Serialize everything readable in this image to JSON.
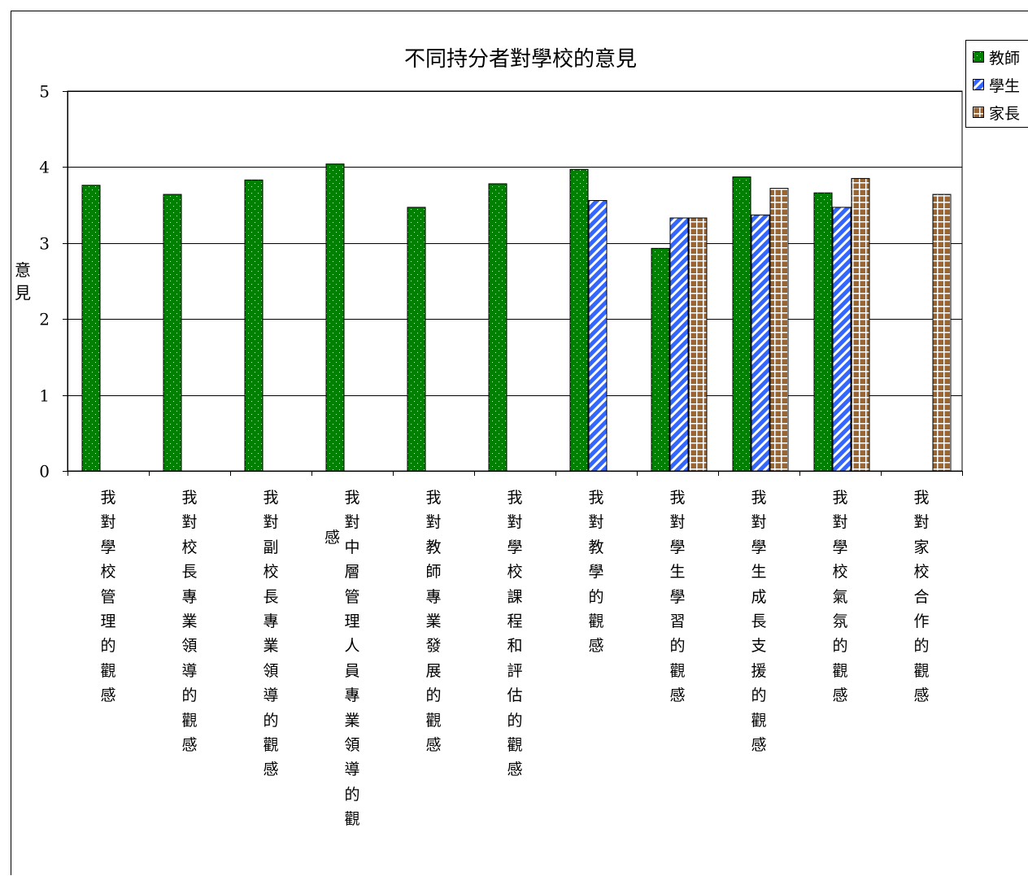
{
  "chart_data": {
    "type": "bar",
    "title": "不同持分者對學校的意見",
    "xlabel": "",
    "ylabel": "意見",
    "ylim": [
      0,
      5
    ],
    "yticks": [
      0,
      1,
      2,
      3,
      4,
      5
    ],
    "grid": "horizontal",
    "legend_position": "top-right",
    "categories": [
      "我對學校管理的觀感",
      "我對校長專業領導的觀感",
      "我對副校長專業領導的觀感",
      "我對中層管理人員專業領導的觀感",
      "我對教師專業發展的觀感",
      "我對學校課程和評估的觀感",
      "我對教學的觀感",
      "我對學生學習的觀感",
      "我對學生成長支援的觀感",
      "我對學校氣氛的觀感",
      "我對家校合作的觀感"
    ],
    "series": [
      {
        "name": "教師",
        "color": "#008000",
        "pattern": "dots",
        "values": [
          3.76,
          3.64,
          3.83,
          4.04,
          3.47,
          3.78,
          3.97,
          2.93,
          3.87,
          3.66,
          null
        ]
      },
      {
        "name": "學生",
        "color": "#3366ff",
        "pattern": "diagonal-stripes",
        "values": [
          null,
          null,
          null,
          null,
          null,
          null,
          3.56,
          3.33,
          3.37,
          3.47,
          null
        ]
      },
      {
        "name": "家長",
        "color": "#996633",
        "pattern": "grid",
        "values": [
          null,
          null,
          null,
          null,
          null,
          null,
          null,
          3.33,
          3.72,
          3.85,
          3.64
        ]
      }
    ]
  }
}
